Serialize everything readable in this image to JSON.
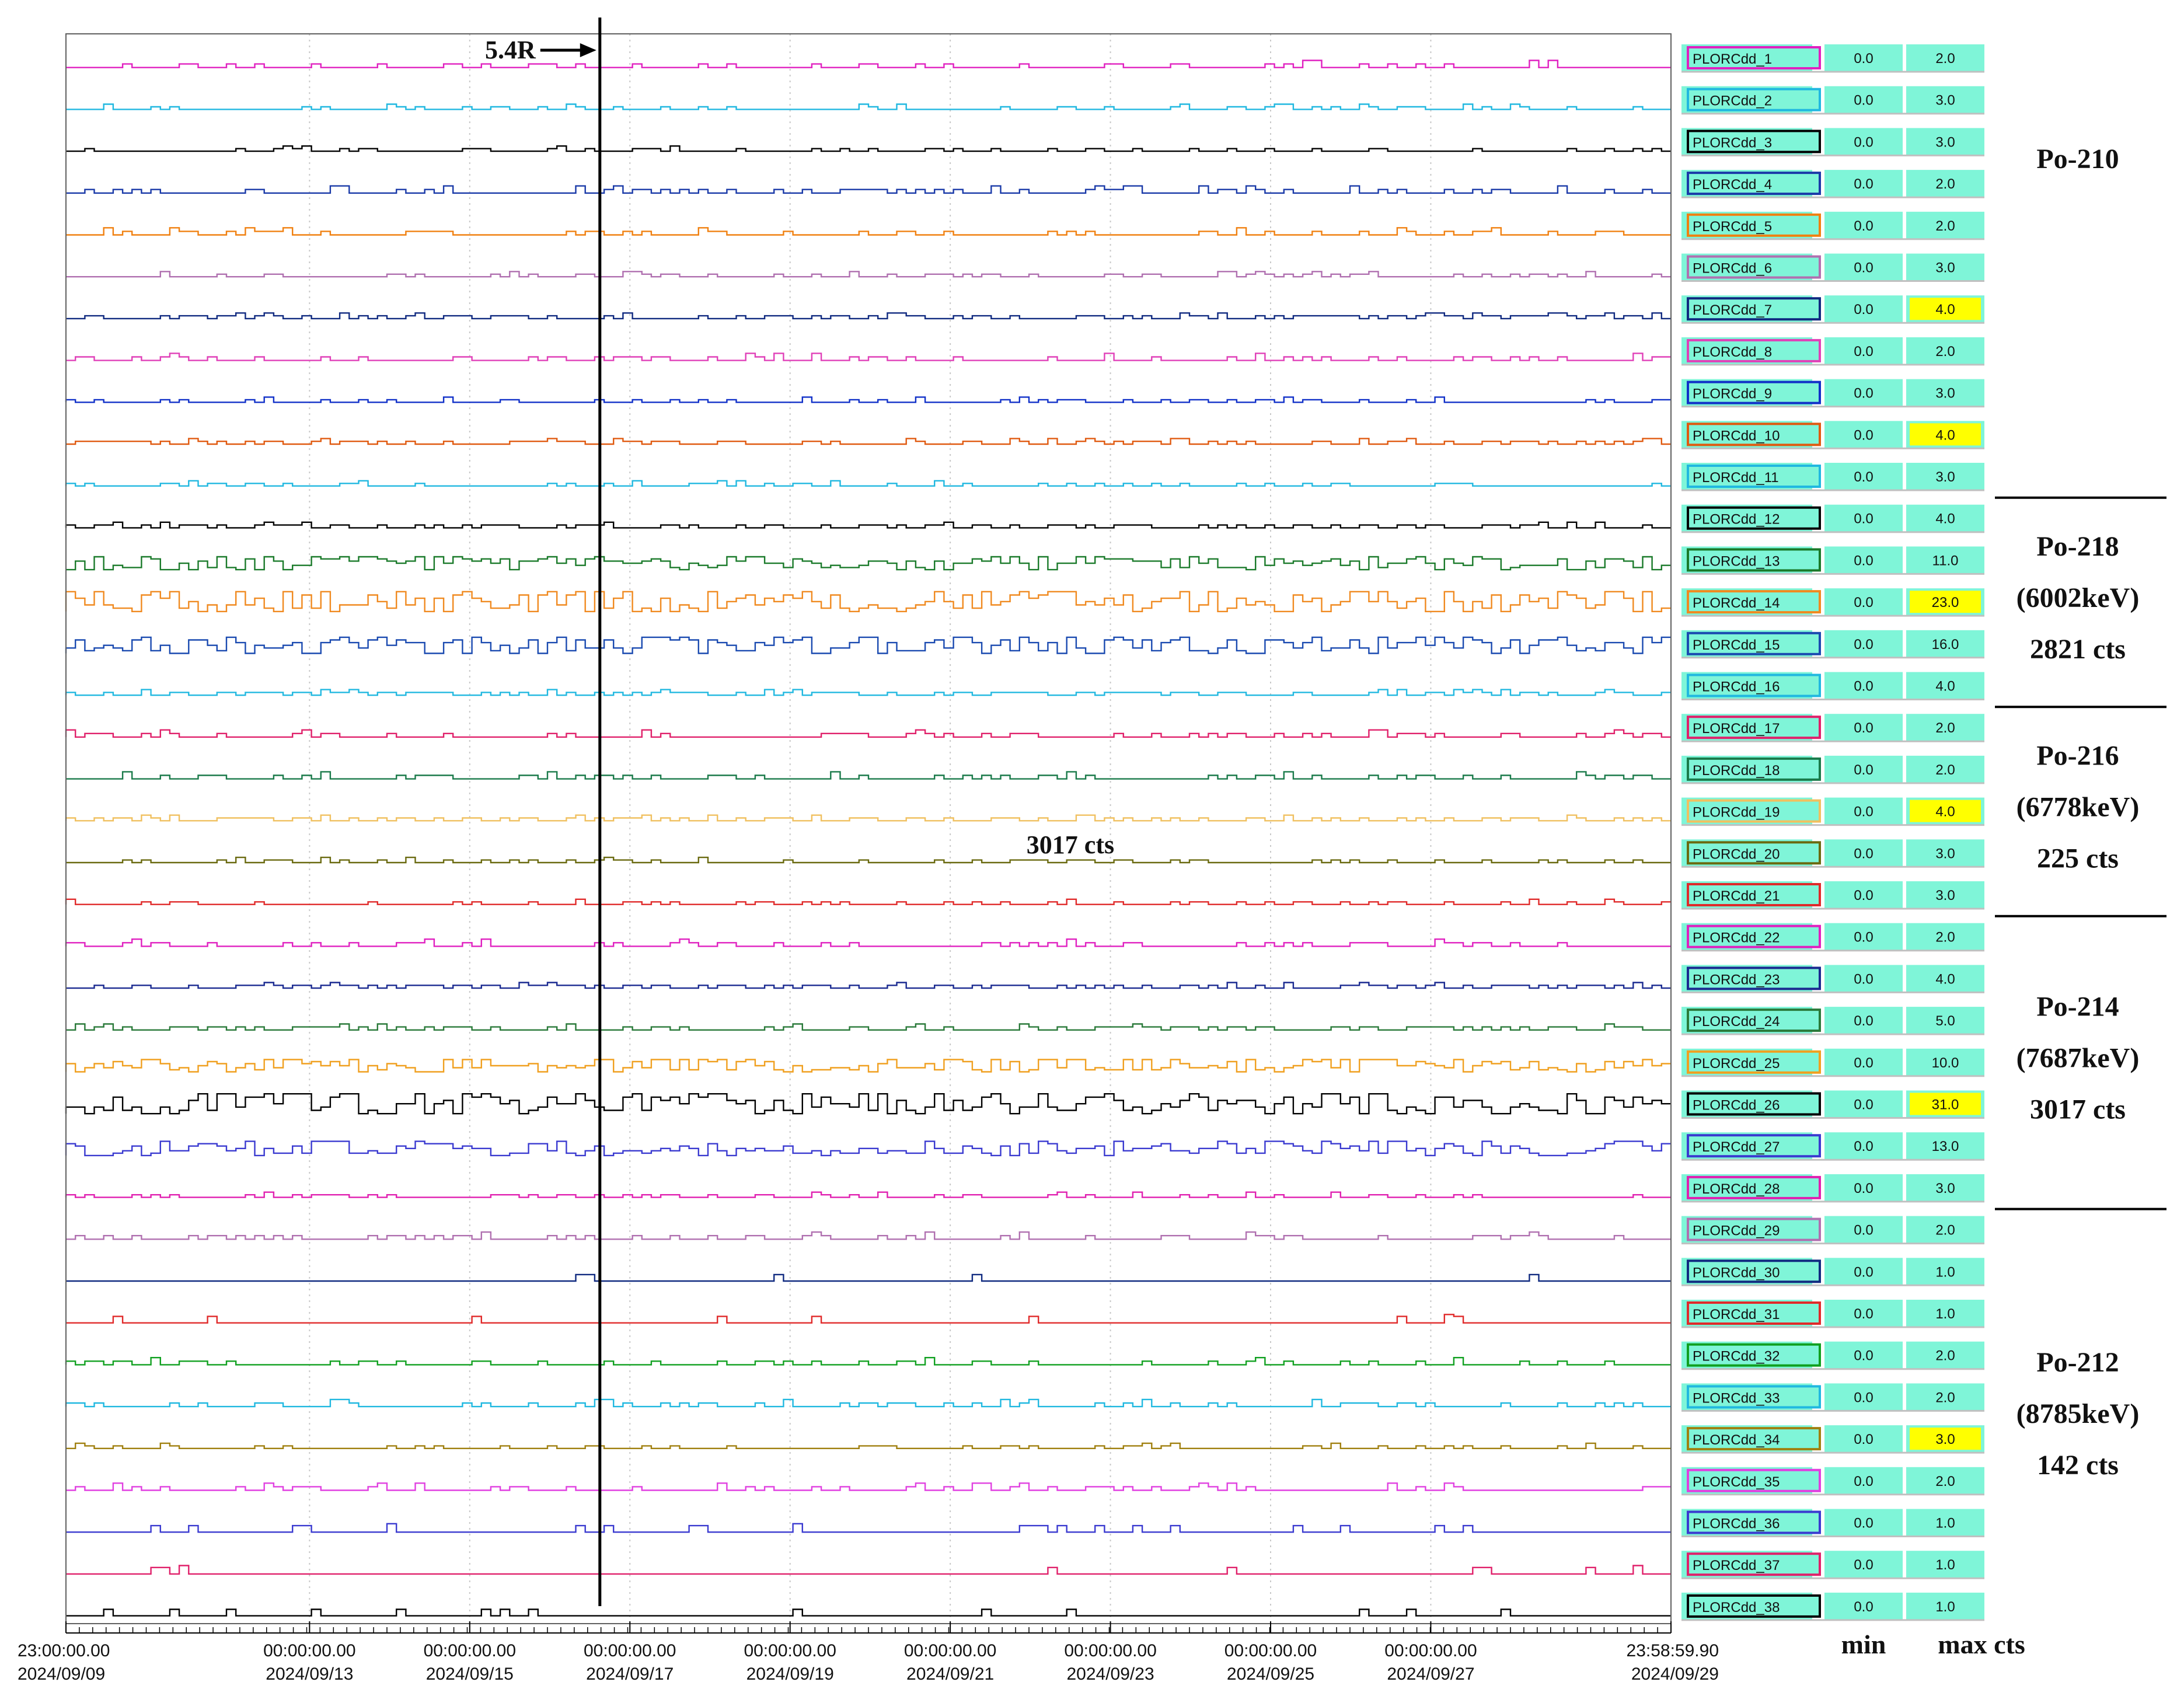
{
  "chart_data": {
    "type": "line",
    "subtype": "stacked-step-traces",
    "x": {
      "start": "2024/09/09 23:00:00.00",
      "end": "2024/09/29 23:58:59.90",
      "tick_labels": [
        {
          "time": "23:00:00.00",
          "date": "2024/09/09",
          "value": "2024-09-09T23:00:00"
        },
        {
          "time": "00:00:00.00",
          "date": "2024/09/13",
          "value": "2024-09-13T00:00:00"
        },
        {
          "time": "00:00:00.00",
          "date": "2024/09/15",
          "value": "2024-09-15T00:00:00"
        },
        {
          "time": "00:00:00.00",
          "date": "2024/09/17",
          "value": "2024-09-17T00:00:00"
        },
        {
          "time": "00:00:00.00",
          "date": "2024/09/19",
          "value": "2024-09-19T00:00:00"
        },
        {
          "time": "00:00:00.00",
          "date": "2024/09/21",
          "value": "2024-09-21T00:00:00"
        },
        {
          "time": "00:00:00.00",
          "date": "2024/09/23",
          "value": "2024-09-23T00:00:00"
        },
        {
          "time": "00:00:00.00",
          "date": "2024/09/25",
          "value": "2024-09-25T00:00:00"
        },
        {
          "time": "00:00:00.00",
          "date": "2024/09/27",
          "value": "2024-09-27T00:00:00"
        },
        {
          "time": "23:58:59.90",
          "date": "2024/09/29",
          "value": "2024-09-29T23:58:59.90"
        }
      ]
    },
    "vertical_marker": {
      "label": "5.4R",
      "x": "2024-09-16T15:00:00"
    },
    "column_headers": {
      "min": "min",
      "max": "max cts"
    },
    "channels": [
      {
        "name": "PLORCdd_1",
        "min": "0.0",
        "max": "2.0",
        "color": "#e020c0",
        "highlight": false
      },
      {
        "name": "PLORCdd_2",
        "min": "0.0",
        "max": "3.0",
        "color": "#20b8e0",
        "highlight": false
      },
      {
        "name": "PLORCdd_3",
        "min": "0.0",
        "max": "3.0",
        "color": "#000000",
        "highlight": false
      },
      {
        "name": "PLORCdd_4",
        "min": "0.0",
        "max": "2.0",
        "color": "#1a3aa8",
        "highlight": false
      },
      {
        "name": "PLORCdd_5",
        "min": "0.0",
        "max": "2.0",
        "color": "#f08010",
        "highlight": false
      },
      {
        "name": "PLORCdd_6",
        "min": "0.0",
        "max": "3.0",
        "color": "#b070b0",
        "highlight": false
      },
      {
        "name": "PLORCdd_7",
        "min": "0.0",
        "max": "4.0",
        "color": "#102a80",
        "highlight": true
      },
      {
        "name": "PLORCdd_8",
        "min": "0.0",
        "max": "2.0",
        "color": "#e040b8",
        "highlight": false
      },
      {
        "name": "PLORCdd_9",
        "min": "0.0",
        "max": "3.0",
        "color": "#1030c8",
        "highlight": false
      },
      {
        "name": "PLORCdd_10",
        "min": "0.0",
        "max": "4.0",
        "color": "#e05a10",
        "highlight": true
      },
      {
        "name": "PLORCdd_11",
        "min": "0.0",
        "max": "3.0",
        "color": "#20b8e0",
        "highlight": false
      },
      {
        "name": "PLORCdd_12",
        "min": "0.0",
        "max": "4.0",
        "color": "#000000",
        "highlight": false
      },
      {
        "name": "PLORCdd_13",
        "min": "0.0",
        "max": "11.0",
        "color": "#1a7a2a",
        "highlight": false
      },
      {
        "name": "PLORCdd_14",
        "min": "0.0",
        "max": "23.0",
        "color": "#f08a20",
        "highlight": true
      },
      {
        "name": "PLORCdd_15",
        "min": "0.0",
        "max": "16.0",
        "color": "#1a4ab0",
        "highlight": false
      },
      {
        "name": "PLORCdd_16",
        "min": "0.0",
        "max": "4.0",
        "color": "#20b8e0",
        "highlight": false
      },
      {
        "name": "PLORCdd_17",
        "min": "0.0",
        "max": "2.0",
        "color": "#e0206a",
        "highlight": false
      },
      {
        "name": "PLORCdd_18",
        "min": "0.0",
        "max": "2.0",
        "color": "#1a7a4a",
        "highlight": false
      },
      {
        "name": "PLORCdd_19",
        "min": "0.0",
        "max": "4.0",
        "color": "#f0c060",
        "highlight": true
      },
      {
        "name": "PLORCdd_20",
        "min": "0.0",
        "max": "3.0",
        "color": "#6a6a10",
        "highlight": false
      },
      {
        "name": "PLORCdd_21",
        "min": "0.0",
        "max": "3.0",
        "color": "#e02a2a",
        "highlight": false
      },
      {
        "name": "PLORCdd_22",
        "min": "0.0",
        "max": "2.0",
        "color": "#e020c0",
        "highlight": false
      },
      {
        "name": "PLORCdd_23",
        "min": "0.0",
        "max": "4.0",
        "color": "#1a2a90",
        "highlight": false
      },
      {
        "name": "PLORCdd_24",
        "min": "0.0",
        "max": "5.0",
        "color": "#2a7a3a",
        "highlight": false
      },
      {
        "name": "PLORCdd_25",
        "min": "0.0",
        "max": "10.0",
        "color": "#f0a020",
        "highlight": false
      },
      {
        "name": "PLORCdd_26",
        "min": "0.0",
        "max": "31.0",
        "color": "#000000",
        "highlight": true
      },
      {
        "name": "PLORCdd_27",
        "min": "0.0",
        "max": "13.0",
        "color": "#3a3ad0",
        "highlight": false
      },
      {
        "name": "PLORCdd_28",
        "min": "0.0",
        "max": "3.0",
        "color": "#e020b0",
        "highlight": false
      },
      {
        "name": "PLORCdd_29",
        "min": "0.0",
        "max": "2.0",
        "color": "#b070b0",
        "highlight": false
      },
      {
        "name": "PLORCdd_30",
        "min": "0.0",
        "max": "1.0",
        "color": "#102a80",
        "highlight": false
      },
      {
        "name": "PLORCdd_31",
        "min": "0.0",
        "max": "1.0",
        "color": "#e02a2a",
        "highlight": false
      },
      {
        "name": "PLORCdd_32",
        "min": "0.0",
        "max": "2.0",
        "color": "#10a020",
        "highlight": false
      },
      {
        "name": "PLORCdd_33",
        "min": "0.0",
        "max": "2.0",
        "color": "#20b8e0",
        "highlight": false
      },
      {
        "name": "PLORCdd_34",
        "min": "0.0",
        "max": "3.0",
        "color": "#a08010",
        "highlight": true
      },
      {
        "name": "PLORCdd_35",
        "min": "0.0",
        "max": "2.0",
        "color": "#e040e0",
        "highlight": false
      },
      {
        "name": "PLORCdd_36",
        "min": "0.0",
        "max": "1.0",
        "color": "#3a3ad0",
        "highlight": false
      },
      {
        "name": "PLORCdd_37",
        "min": "0.0",
        "max": "1.0",
        "color": "#e0206a",
        "highlight": false
      },
      {
        "name": "PLORCdd_38",
        "min": "0.0",
        "max": "1.0",
        "color": "#000000",
        "highlight": false
      }
    ],
    "annotations": [
      {
        "id": "po210",
        "lines": [
          "Po-210"
        ],
        "channels": [
          1,
          11
        ]
      },
      {
        "id": "po218",
        "lines": [
          "Po-218",
          "(6002keV)",
          "2821 cts"
        ],
        "channels": [
          12,
          16
        ]
      },
      {
        "id": "po216",
        "lines": [
          "Po-216",
          "(6778keV)",
          "225 cts"
        ],
        "channels": [
          17,
          21
        ]
      },
      {
        "id": "po214",
        "lines": [
          "Po-214",
          "(7687keV)",
          "3017 cts"
        ],
        "channels": [
          22,
          28
        ]
      },
      {
        "id": "po212",
        "lines": [
          "Po-212",
          "(8785keV)",
          "142 cts"
        ],
        "channels": [
          29,
          38
        ]
      }
    ],
    "inline_annotation": {
      "text": "3017 cts",
      "x": "2024-09-22T12:00:00",
      "channel": 20
    },
    "grid": {
      "vertical": true,
      "style": "dotted"
    },
    "colors": {
      "cell_bg": "#7ff5d8",
      "highlight": "#ffff00"
    }
  }
}
